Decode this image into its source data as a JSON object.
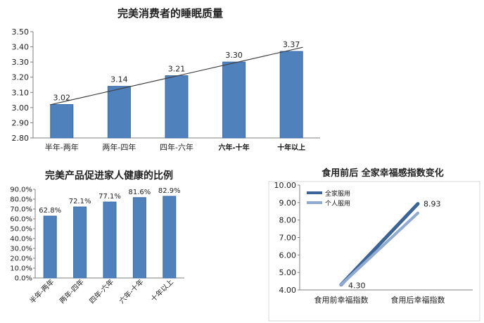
{
  "colors": {
    "bar": "#4f81bd",
    "bar_edge": "#3a6aa6",
    "trend": "#404040",
    "series_dark": "#3b6496",
    "series_light": "#8faad3"
  },
  "chart_data": [
    {
      "type": "bar",
      "title": "完美消费者的睡眠质量",
      "categories": [
        "半年-两年",
        "两年-四年",
        "四年-六年",
        "六年-十年",
        "十年以上"
      ],
      "values": [
        3.02,
        3.14,
        3.21,
        3.3,
        3.37
      ],
      "value_labels": [
        "3.02",
        "3.14",
        "3.21",
        "3.30",
        "3.37"
      ],
      "ylim": [
        2.8,
        3.5
      ],
      "yticks": [
        "2.80",
        "2.90",
        "3.00",
        "3.10",
        "3.20",
        "3.30",
        "3.40",
        "3.50"
      ],
      "trendline": true,
      "grid": false,
      "xlabel": "",
      "ylabel": ""
    },
    {
      "type": "bar",
      "title": "完美产品促进家人健康的比例",
      "categories": [
        "半年-两年",
        "两年-四年",
        "四年-六年",
        "六年-十年",
        "十年以上"
      ],
      "values": [
        62.8,
        72.1,
        77.1,
        81.6,
        82.9
      ],
      "value_labels": [
        "62.8%",
        "72.1%",
        "77.1%",
        "81.6%",
        "82.9%"
      ],
      "ylim": [
        0,
        90
      ],
      "yticks": [
        "0.0%",
        "10.0%",
        "20.0%",
        "30.0%",
        "40.0%",
        "50.0%",
        "60.0%",
        "70.0%",
        "80.0%",
        "90.0%"
      ],
      "grid": false,
      "xlabel": "",
      "ylabel": ""
    },
    {
      "type": "line",
      "title": "食用前后 全家幸福感指数变化",
      "categories": [
        "食用前幸福指数",
        "食用后幸福指数"
      ],
      "series": [
        {
          "name": "全家服用",
          "values": [
            4.3,
            8.93
          ]
        },
        {
          "name": "个人服用",
          "values": [
            4.3,
            8.4
          ]
        }
      ],
      "value_labels": [
        "4.30",
        "8.93"
      ],
      "ylim": [
        4.0,
        10.0
      ],
      "yticks": [
        "4.00",
        "5.00",
        "6.00",
        "7.00",
        "8.00",
        "9.00",
        "10.00"
      ],
      "legend": "top-left",
      "grid": false,
      "xlabel": "",
      "ylabel": ""
    }
  ]
}
